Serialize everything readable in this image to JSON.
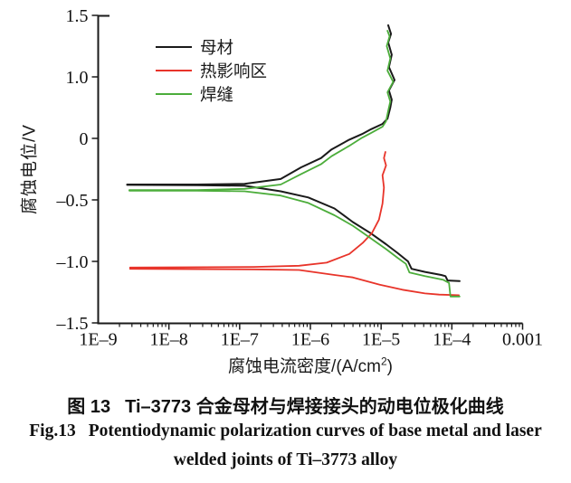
{
  "chart_data": {
    "type": "line",
    "x_axis": {
      "scale": "log",
      "tick_labels": [
        "1E–9",
        "1E–8",
        "1E–7",
        "1E–6",
        "1E–5",
        "1E–4",
        "0.001"
      ],
      "tick_logs": [
        -9,
        -8,
        -7,
        -6,
        -5,
        -4,
        -3
      ],
      "range_log": [
        -9,
        -3
      ],
      "minor_ticks": "log-decades",
      "label_parts": {
        "pre": "腐蚀电流密度/(A/cm",
        "sup": "2",
        "post": ")"
      }
    },
    "y_axis": {
      "tick_labels": [
        "1.5",
        "1.0",
        "0",
        "–0.5",
        "–1.0",
        "–1.5"
      ],
      "tick_values": [
        1.5,
        1.0,
        0,
        -0.5,
        -1.0,
        -1.5
      ],
      "label": "腐蚀电位/V"
    },
    "legend_position": "top-left-inside",
    "grid": false,
    "series": [
      {
        "id": "base-metal",
        "name": "母材",
        "color": "#1a1a1a",
        "stroke_width": 2.0,
        "corrosion_potential_V": -0.38,
        "branches": [
          [
            [
              -8.59,
              -0.375
            ],
            [
              -7.6,
              -0.375
            ],
            [
              -6.93,
              -0.37
            ],
            [
              -6.42,
              -0.33
            ],
            [
              -6.13,
              -0.235
            ],
            [
              -5.85,
              -0.16
            ],
            [
              -5.7,
              -0.09
            ],
            [
              -5.45,
              -0.01
            ],
            [
              -5.27,
              0.07
            ],
            [
              -5.14,
              0.15
            ],
            [
              -4.98,
              0.235
            ],
            [
              -4.91,
              0.32
            ],
            [
              -4.87,
              0.5
            ],
            [
              -4.85,
              0.63
            ],
            [
              -4.89,
              0.78
            ],
            [
              -4.81,
              0.95
            ],
            [
              -4.89,
              1.08
            ],
            [
              -4.85,
              1.18
            ],
            [
              -4.9,
              1.28
            ],
            [
              -4.86,
              1.35
            ],
            [
              -4.9,
              1.42
            ]
          ],
          [
            [
              -8.59,
              -0.378
            ],
            [
              -7.6,
              -0.38
            ],
            [
              -6.93,
              -0.385
            ],
            [
              -6.42,
              -0.43
            ],
            [
              -6.03,
              -0.48
            ],
            [
              -5.66,
              -0.57
            ],
            [
              -5.4,
              -0.68
            ],
            [
              -5.15,
              -0.77
            ],
            [
              -4.93,
              -0.86
            ],
            [
              -4.77,
              -0.93
            ],
            [
              -4.62,
              -1.0
            ],
            [
              -4.57,
              -1.06
            ],
            [
              -4.38,
              -1.085
            ],
            [
              -4.15,
              -1.11
            ],
            [
              -4.09,
              -1.12
            ],
            [
              -4.06,
              -1.155
            ],
            [
              -3.89,
              -1.16
            ]
          ]
        ]
      },
      {
        "id": "heat-affected-zone",
        "name": "热影响区",
        "color": "#e8342a",
        "stroke_width": 1.8,
        "corrosion_potential_V": -1.05,
        "branches": [
          [
            [
              -8.55,
              -1.05
            ],
            [
              -6.8,
              -1.045
            ],
            [
              -6.16,
              -1.035
            ],
            [
              -5.77,
              -1.01
            ],
            [
              -5.45,
              -0.94
            ],
            [
              -5.26,
              -0.85
            ],
            [
              -5.13,
              -0.77
            ],
            [
              -5.03,
              -0.66
            ],
            [
              -4.98,
              -0.53
            ],
            [
              -4.96,
              -0.4
            ],
            [
              -4.98,
              -0.3
            ],
            [
              -4.93,
              -0.22
            ],
            [
              -4.96,
              -0.16
            ],
            [
              -4.94,
              -0.11
            ]
          ],
          [
            [
              -8.55,
              -1.06
            ],
            [
              -6.8,
              -1.065
            ],
            [
              -6.16,
              -1.07
            ],
            [
              -5.66,
              -1.11
            ],
            [
              -5.4,
              -1.13
            ],
            [
              -5.02,
              -1.19
            ],
            [
              -4.7,
              -1.23
            ],
            [
              -4.38,
              -1.26
            ],
            [
              -4.18,
              -1.27
            ],
            [
              -3.9,
              -1.275
            ]
          ]
        ]
      },
      {
        "id": "weld",
        "name": "焊缝",
        "color": "#4cad3b",
        "stroke_width": 1.8,
        "corrosion_potential_V": -0.43,
        "branches": [
          [
            [
              -8.56,
              -0.42
            ],
            [
              -7.6,
              -0.42
            ],
            [
              -6.93,
              -0.41
            ],
            [
              -6.42,
              -0.375
            ],
            [
              -6.13,
              -0.29
            ],
            [
              -5.85,
              -0.21
            ],
            [
              -5.7,
              -0.145
            ],
            [
              -5.45,
              -0.06
            ],
            [
              -5.27,
              0.01
            ],
            [
              -5.14,
              0.09
            ],
            [
              -4.98,
              0.19
            ],
            [
              -4.93,
              0.28
            ],
            [
              -4.9,
              0.45
            ],
            [
              -4.87,
              0.6
            ],
            [
              -4.91,
              0.75
            ],
            [
              -4.83,
              0.92
            ],
            [
              -4.91,
              1.05
            ],
            [
              -4.87,
              1.15
            ],
            [
              -4.92,
              1.25
            ],
            [
              -4.88,
              1.33
            ],
            [
              -4.91,
              1.375
            ]
          ],
          [
            [
              -8.56,
              -0.425
            ],
            [
              -7.6,
              -0.425
            ],
            [
              -6.93,
              -0.43
            ],
            [
              -6.42,
              -0.465
            ],
            [
              -6.03,
              -0.525
            ],
            [
              -5.66,
              -0.625
            ],
            [
              -5.4,
              -0.71
            ],
            [
              -5.15,
              -0.81
            ],
            [
              -4.93,
              -0.9
            ],
            [
              -4.77,
              -0.97
            ],
            [
              -4.65,
              -1.02
            ],
            [
              -4.6,
              -1.09
            ],
            [
              -4.38,
              -1.12
            ],
            [
              -4.12,
              -1.15
            ],
            [
              -4.04,
              -1.175
            ],
            [
              -4.02,
              -1.285
            ],
            [
              -3.89,
              -1.285
            ]
          ]
        ]
      }
    ]
  },
  "caption": {
    "zh_label": "图 13",
    "zh_text": "Ti–3773 合金母材与焊接接头的动电位极化曲线",
    "en_label": "Fig.13",
    "en_line1": "Potentiodynamic polarization curves of base metal and laser",
    "en_line2": "welded joints of Ti–3773 alloy"
  },
  "colors": {
    "axis": "#1a1a1a",
    "text": "#111111",
    "base_metal": "#1a1a1a",
    "heat_affected_zone": "#e8342a",
    "weld": "#4cad3b"
  }
}
